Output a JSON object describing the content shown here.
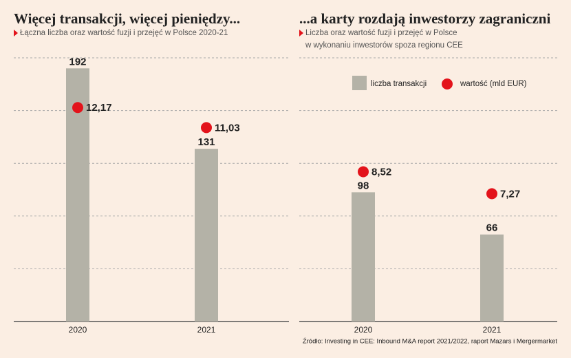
{
  "chart_data": [
    {
      "type": "bar",
      "title": "Więcej transakcji, więcej pieniędzy...",
      "subtitle": [
        "Łączna liczba oraz wartość fuzji i przejęć w Polsce 2020-21"
      ],
      "categories": [
        "2020",
        "2021"
      ],
      "series": [
        {
          "color": "#b4b2a7",
          "values": [
            192,
            131
          ]
        },
        {
          "color": "#e3131b",
          "values": [
            12.17,
            11.03
          ],
          "value_labels": [
            "12,17",
            "11,03"
          ],
          "axis": "y2"
        }
      ],
      "ylim": [
        0,
        200
      ],
      "yticks": [
        0,
        40,
        80,
        120,
        160,
        200
      ],
      "y2lim": [
        0,
        15
      ],
      "grid": true
    },
    {
      "type": "bar",
      "title": "...a karty rozdają inwestorzy zagraniczni",
      "subtitle": [
        "Liczba oraz wartość fuzji i przejęć w Polsce",
        "w wykonaniu inwestorów spoza regionu CEE"
      ],
      "categories": [
        "2020",
        "2021"
      ],
      "series": [
        {
          "name": "liczba transakcji",
          "color": "#b4b2a7",
          "values": [
            98,
            66
          ]
        },
        {
          "name": "wartość (mld EUR)",
          "color": "#e3131b",
          "values": [
            8.52,
            7.27
          ],
          "value_labels": [
            "8,52",
            "7,27"
          ],
          "axis": "y2"
        }
      ],
      "ylim": [
        0,
        200
      ],
      "yticks": [
        0,
        40,
        80,
        120,
        160,
        200
      ],
      "y2lim": [
        0,
        15
      ],
      "grid": true,
      "legend": "top"
    }
  ],
  "source": "Źródło: Investing in CEE: Inbound M&A report 2021/2022, raport Mazars i Mergermarket"
}
